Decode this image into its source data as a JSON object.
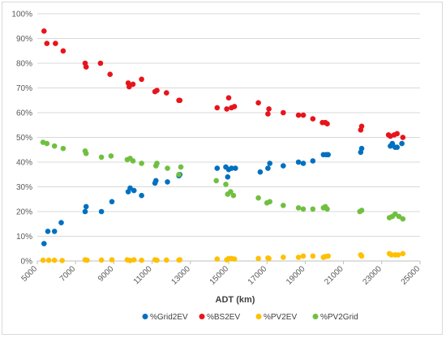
{
  "chart_data": {
    "type": "scatter",
    "title": "",
    "xlabel": "ADT (km)",
    "ylabel": "",
    "xlim": [
      5000,
      25000
    ],
    "ylim": [
      0,
      100
    ],
    "x_ticks": [
      5000,
      7000,
      9000,
      11000,
      13000,
      15000,
      17000,
      19000,
      21000,
      23000,
      25000
    ],
    "y_ticks": [
      0,
      10,
      20,
      30,
      40,
      50,
      60,
      70,
      80,
      90,
      100
    ],
    "y_tick_labels": [
      "0%",
      "10%",
      "20%",
      "30%",
      "40%",
      "50%",
      "60%",
      "70%",
      "80%",
      "90%",
      "100%"
    ],
    "grid": true,
    "legend_position": "bottom",
    "series": [
      {
        "name": "%Grid2EV",
        "color": "#0070C0",
        "points": [
          [
            5350,
            7
          ],
          [
            5550,
            12
          ],
          [
            5900,
            12
          ],
          [
            6250,
            15.5
          ],
          [
            7500,
            20
          ],
          [
            7550,
            22
          ],
          [
            8350,
            20
          ],
          [
            8900,
            24
          ],
          [
            9750,
            28
          ],
          [
            9850,
            29.5
          ],
          [
            10050,
            28.5
          ],
          [
            10450,
            26.5
          ],
          [
            11150,
            31.5
          ],
          [
            11200,
            32.5
          ],
          [
            11800,
            32
          ],
          [
            12400,
            34.5
          ],
          [
            12450,
            35
          ],
          [
            14400,
            37.5
          ],
          [
            14850,
            38
          ],
          [
            14950,
            34
          ],
          [
            15000,
            37
          ],
          [
            15150,
            37.5
          ],
          [
            15350,
            37.5
          ],
          [
            16650,
            36
          ],
          [
            17050,
            37.5
          ],
          [
            17150,
            39.5
          ],
          [
            17850,
            38.5
          ],
          [
            18650,
            40
          ],
          [
            18900,
            39.5
          ],
          [
            19400,
            40.5
          ],
          [
            19950,
            43
          ],
          [
            20100,
            43
          ],
          [
            20200,
            43
          ],
          [
            21900,
            44
          ],
          [
            21950,
            45.5
          ],
          [
            23450,
            46.5
          ],
          [
            23550,
            47.5
          ],
          [
            23700,
            46
          ],
          [
            23800,
            46
          ],
          [
            24050,
            47.5
          ]
        ]
      },
      {
        "name": "%BS2EV",
        "color": "#E8141B",
        "points": [
          [
            5350,
            93
          ],
          [
            5500,
            88
          ],
          [
            5950,
            88
          ],
          [
            6350,
            85
          ],
          [
            7500,
            80
          ],
          [
            7550,
            78.5
          ],
          [
            8300,
            80
          ],
          [
            8800,
            75.5
          ],
          [
            9750,
            72
          ],
          [
            9800,
            70.5
          ],
          [
            10000,
            71.5
          ],
          [
            10450,
            73.5
          ],
          [
            11150,
            68.5
          ],
          [
            11250,
            69
          ],
          [
            11750,
            68
          ],
          [
            12400,
            65
          ],
          [
            12450,
            65
          ],
          [
            14400,
            62
          ],
          [
            14900,
            61.5
          ],
          [
            15000,
            66
          ],
          [
            15150,
            62
          ],
          [
            15300,
            62.5
          ],
          [
            16550,
            64
          ],
          [
            17050,
            59.5
          ],
          [
            17100,
            61.5
          ],
          [
            17850,
            60
          ],
          [
            18650,
            59
          ],
          [
            18900,
            59
          ],
          [
            19400,
            57.5
          ],
          [
            19900,
            56
          ],
          [
            20050,
            56
          ],
          [
            20150,
            55.5
          ],
          [
            21900,
            53
          ],
          [
            21950,
            54.5
          ],
          [
            23350,
            51
          ],
          [
            23450,
            50.5
          ],
          [
            23650,
            51
          ],
          [
            23800,
            51.5
          ],
          [
            24100,
            50
          ]
        ]
      },
      {
        "name": "%PV2EV",
        "color": "#FFC000",
        "points": [
          [
            5300,
            0.3
          ],
          [
            5600,
            0.3
          ],
          [
            5900,
            0.3
          ],
          [
            6300,
            0.2
          ],
          [
            7500,
            0.5
          ],
          [
            7600,
            0.3
          ],
          [
            8350,
            0.4
          ],
          [
            8900,
            0.5
          ],
          [
            9700,
            0.5
          ],
          [
            9850,
            0.2
          ],
          [
            10050,
            0.5
          ],
          [
            10450,
            0.3
          ],
          [
            11150,
            0.5
          ],
          [
            11250,
            0.3
          ],
          [
            11750,
            0.4
          ],
          [
            12400,
            0.4
          ],
          [
            12450,
            0.5
          ],
          [
            14400,
            0.8
          ],
          [
            14900,
            0.5
          ],
          [
            15000,
            1
          ],
          [
            15150,
            1
          ],
          [
            15300,
            0.8
          ],
          [
            16550,
            1
          ],
          [
            17050,
            1.2
          ],
          [
            17100,
            1
          ],
          [
            17850,
            1.5
          ],
          [
            18650,
            1.5
          ],
          [
            18900,
            2
          ],
          [
            19400,
            2
          ],
          [
            19950,
            1.5
          ],
          [
            20050,
            1.8
          ],
          [
            20200,
            2
          ],
          [
            21900,
            2.5
          ],
          [
            21950,
            2
          ],
          [
            23400,
            3
          ],
          [
            23500,
            2.5
          ],
          [
            23700,
            2.5
          ],
          [
            23850,
            2.5
          ],
          [
            24100,
            3
          ]
        ]
      },
      {
        "name": "%PV2Grid",
        "color": "#70C040",
        "points": [
          [
            5300,
            48
          ],
          [
            5500,
            47.5
          ],
          [
            5900,
            46.5
          ],
          [
            6350,
            45.5
          ],
          [
            7500,
            44.5
          ],
          [
            7550,
            43.5
          ],
          [
            8350,
            42
          ],
          [
            8850,
            42.5
          ],
          [
            9700,
            41
          ],
          [
            9850,
            41.5
          ],
          [
            10000,
            40.5
          ],
          [
            10450,
            39.5
          ],
          [
            11200,
            38.5
          ],
          [
            11250,
            39.5
          ],
          [
            11800,
            37.5
          ],
          [
            12400,
            35
          ],
          [
            12500,
            38
          ],
          [
            14350,
            32.5
          ],
          [
            14850,
            31
          ],
          [
            14950,
            27
          ],
          [
            15100,
            28
          ],
          [
            15250,
            26.5
          ],
          [
            16550,
            25.5
          ],
          [
            17000,
            23.5
          ],
          [
            17150,
            24
          ],
          [
            17850,
            22.5
          ],
          [
            18650,
            21.5
          ],
          [
            18900,
            21
          ],
          [
            19400,
            21
          ],
          [
            19950,
            21.5
          ],
          [
            20050,
            22
          ],
          [
            20150,
            21
          ],
          [
            21850,
            20
          ],
          [
            21950,
            20.5
          ],
          [
            23400,
            17.5
          ],
          [
            23550,
            18
          ],
          [
            23700,
            19
          ],
          [
            23900,
            18
          ],
          [
            24100,
            17
          ]
        ]
      }
    ]
  }
}
